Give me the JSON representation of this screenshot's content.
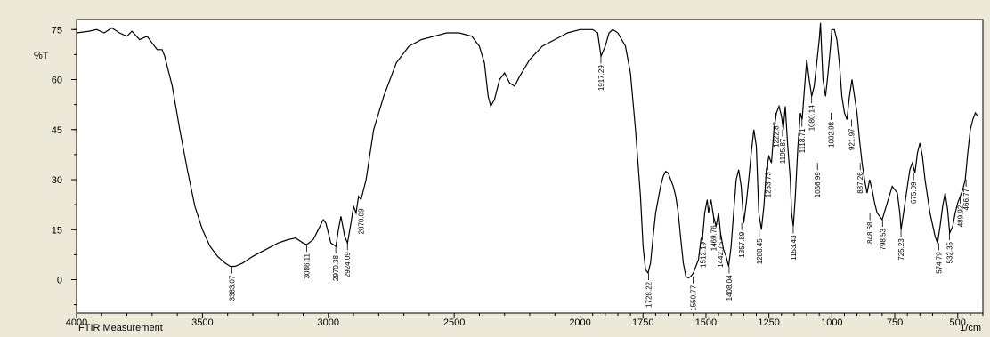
{
  "chart_data": {
    "type": "line",
    "title": "",
    "xlabel": "FTIR Measurement",
    "x_unit": "1/cm",
    "ylabel": "%T",
    "xlim": [
      4000,
      400
    ],
    "ylim": [
      -10,
      78
    ],
    "x_reversed": true,
    "grid": false,
    "x_ticks": [
      4000,
      3500,
      3000,
      2500,
      2000,
      1750,
      1500,
      1250,
      1000,
      750,
      500
    ],
    "x_tick_labels": [
      "4000",
      "3500",
      "3000",
      "2500",
      "2000",
      "1750",
      "1500",
      "1250",
      "1000",
      "750",
      "500"
    ],
    "y_ticks": [
      0,
      15,
      30,
      45,
      60,
      75
    ],
    "y_tick_labels": [
      "0",
      "15",
      "30",
      "45",
      "60",
      "75"
    ],
    "line_color": "#000000",
    "series": [
      {
        "name": "",
        "points": [
          [
            4000,
            74
          ],
          [
            3950,
            74.5
          ],
          [
            3920,
            75
          ],
          [
            3890,
            74
          ],
          [
            3860,
            75.5
          ],
          [
            3830,
            74
          ],
          [
            3800,
            73
          ],
          [
            3780,
            74.5
          ],
          [
            3750,
            72
          ],
          [
            3720,
            73
          ],
          [
            3700,
            71
          ],
          [
            3680,
            69
          ],
          [
            3660,
            69
          ],
          [
            3650,
            67
          ],
          [
            3620,
            58
          ],
          [
            3590,
            45
          ],
          [
            3560,
            33
          ],
          [
            3530,
            22
          ],
          [
            3500,
            15
          ],
          [
            3470,
            10
          ],
          [
            3440,
            7
          ],
          [
            3410,
            5
          ],
          [
            3390,
            4
          ],
          [
            3370,
            4
          ],
          [
            3340,
            5
          ],
          [
            3300,
            7
          ],
          [
            3250,
            9
          ],
          [
            3200,
            11
          ],
          [
            3160,
            12
          ],
          [
            3130,
            12.5
          ],
          [
            3100,
            11
          ],
          [
            3086,
            10.5
          ],
          [
            3060,
            12
          ],
          [
            3040,
            15
          ],
          [
            3020,
            18
          ],
          [
            3010,
            17
          ],
          [
            2990,
            11
          ],
          [
            2970,
            10
          ],
          [
            2960,
            15
          ],
          [
            2950,
            19
          ],
          [
            2935,
            13
          ],
          [
            2924,
            11
          ],
          [
            2910,
            17
          ],
          [
            2900,
            22
          ],
          [
            2890,
            20
          ],
          [
            2880,
            25
          ],
          [
            2870,
            24
          ],
          [
            2850,
            30
          ],
          [
            2820,
            45
          ],
          [
            2780,
            55
          ],
          [
            2730,
            65
          ],
          [
            2680,
            70
          ],
          [
            2630,
            72
          ],
          [
            2580,
            73
          ],
          [
            2530,
            74
          ],
          [
            2480,
            74
          ],
          [
            2430,
            73
          ],
          [
            2400,
            70
          ],
          [
            2380,
            65
          ],
          [
            2365,
            55
          ],
          [
            2355,
            52
          ],
          [
            2340,
            54
          ],
          [
            2320,
            60
          ],
          [
            2300,
            62
          ],
          [
            2280,
            59
          ],
          [
            2260,
            58
          ],
          [
            2240,
            61
          ],
          [
            2200,
            66
          ],
          [
            2150,
            70
          ],
          [
            2100,
            72
          ],
          [
            2050,
            74
          ],
          [
            2000,
            75
          ],
          [
            1950,
            75
          ],
          [
            1930,
            74
          ],
          [
            1917,
            67
          ],
          [
            1900,
            70
          ],
          [
            1885,
            74
          ],
          [
            1870,
            75
          ],
          [
            1850,
            74
          ],
          [
            1820,
            70
          ],
          [
            1800,
            62
          ],
          [
            1780,
            45
          ],
          [
            1760,
            25
          ],
          [
            1750,
            10
          ],
          [
            1740,
            3
          ],
          [
            1730,
            2
          ],
          [
            1720,
            5
          ],
          [
            1710,
            13
          ],
          [
            1700,
            20
          ],
          [
            1690,
            24
          ],
          [
            1680,
            28
          ],
          [
            1670,
            31
          ],
          [
            1660,
            32.5
          ],
          [
            1650,
            32
          ],
          [
            1640,
            30
          ],
          [
            1630,
            28
          ],
          [
            1620,
            25
          ],
          [
            1610,
            20
          ],
          [
            1600,
            12
          ],
          [
            1590,
            5
          ],
          [
            1580,
            1
          ],
          [
            1570,
            0.5
          ],
          [
            1560,
            1
          ],
          [
            1550,
            2
          ],
          [
            1540,
            4
          ],
          [
            1530,
            6
          ],
          [
            1520,
            12
          ],
          [
            1512,
            14
          ],
          [
            1505,
            20
          ],
          [
            1495,
            24
          ],
          [
            1490,
            20
          ],
          [
            1485,
            22
          ],
          [
            1480,
            24
          ],
          [
            1470,
            19
          ],
          [
            1460,
            16
          ],
          [
            1450,
            20
          ],
          [
            1442,
            14
          ],
          [
            1430,
            9
          ],
          [
            1420,
            7
          ],
          [
            1410,
            4
          ],
          [
            1400,
            10
          ],
          [
            1390,
            20
          ],
          [
            1380,
            30
          ],
          [
            1370,
            33
          ],
          [
            1360,
            28
          ],
          [
            1350,
            17
          ],
          [
            1340,
            23
          ],
          [
            1330,
            30
          ],
          [
            1320,
            38
          ],
          [
            1310,
            45
          ],
          [
            1300,
            40
          ],
          [
            1290,
            20
          ],
          [
            1280,
            15
          ],
          [
            1270,
            22
          ],
          [
            1260,
            33
          ],
          [
            1250,
            37
          ],
          [
            1240,
            35
          ],
          [
            1230,
            45
          ],
          [
            1220,
            50
          ],
          [
            1210,
            52
          ],
          [
            1200,
            49
          ],
          [
            1193,
            45
          ],
          [
            1185,
            52
          ],
          [
            1175,
            40
          ],
          [
            1165,
            30
          ],
          [
            1160,
            20
          ],
          [
            1153,
            16
          ],
          [
            1145,
            25
          ],
          [
            1135,
            40
          ],
          [
            1125,
            50
          ],
          [
            1118,
            48
          ],
          [
            1110,
            56
          ],
          [
            1100,
            66
          ],
          [
            1090,
            60
          ],
          [
            1080,
            55
          ],
          [
            1070,
            58
          ],
          [
            1060,
            65
          ],
          [
            1050,
            72
          ],
          [
            1045,
            77
          ],
          [
            1040,
            68
          ],
          [
            1035,
            60
          ],
          [
            1025,
            55
          ],
          [
            1015,
            62
          ],
          [
            1005,
            70
          ],
          [
            1000,
            75
          ],
          [
            990,
            75
          ],
          [
            980,
            72
          ],
          [
            970,
            65
          ],
          [
            960,
            55
          ],
          [
            950,
            50
          ],
          [
            940,
            48
          ],
          [
            930,
            55
          ],
          [
            920,
            60
          ],
          [
            910,
            55
          ],
          [
            900,
            50
          ],
          [
            890,
            42
          ],
          [
            880,
            35
          ],
          [
            870,
            30
          ],
          [
            860,
            26
          ],
          [
            850,
            30
          ],
          [
            840,
            27
          ],
          [
            830,
            23
          ],
          [
            820,
            20
          ],
          [
            800,
            18
          ],
          [
            780,
            23
          ],
          [
            760,
            28
          ],
          [
            740,
            26
          ],
          [
            730,
            20
          ],
          [
            725,
            15
          ],
          [
            715,
            20
          ],
          [
            700,
            28
          ],
          [
            690,
            33
          ],
          [
            680,
            35
          ],
          [
            670,
            32
          ],
          [
            660,
            38
          ],
          [
            650,
            41
          ],
          [
            640,
            37
          ],
          [
            630,
            30
          ],
          [
            610,
            20
          ],
          [
            590,
            13
          ],
          [
            580,
            11
          ],
          [
            570,
            16
          ],
          [
            560,
            22
          ],
          [
            550,
            26
          ],
          [
            540,
            21
          ],
          [
            532,
            14
          ],
          [
            520,
            16
          ],
          [
            510,
            20
          ],
          [
            500,
            23
          ],
          [
            490,
            25
          ],
          [
            480,
            27
          ],
          [
            470,
            30
          ],
          [
            460,
            38
          ],
          [
            450,
            45
          ],
          [
            440,
            48
          ],
          [
            430,
            50
          ],
          [
            420,
            49
          ]
        ]
      }
    ],
    "peak_labels": [
      {
        "x": 3383.07,
        "y": 4,
        "text": "3383.07"
      },
      {
        "x": 3086.11,
        "y": 10.5,
        "text": "3086.11"
      },
      {
        "x": 2970.38,
        "y": 10,
        "text": "2970.38"
      },
      {
        "x": 2924.09,
        "y": 11,
        "text": "2924.09"
      },
      {
        "x": 2870.09,
        "y": 24,
        "text": "2870.09"
      },
      {
        "x": 1917.29,
        "y": 67,
        "text": "1917.29"
      },
      {
        "x": 1728.22,
        "y": 2,
        "text": "1728.22"
      },
      {
        "x": 1550.77,
        "y": 1,
        "text": "1550.77"
      },
      {
        "x": 1512.19,
        "y": 14,
        "text": "1512.19"
      },
      {
        "x": 1469.76,
        "y": 19,
        "text": "1469.76"
      },
      {
        "x": 1442.75,
        "y": 14,
        "text": "1442.75"
      },
      {
        "x": 1408.04,
        "y": 4,
        "text": "1408.04"
      },
      {
        "x": 1357.89,
        "y": 17,
        "text": "1357.89"
      },
      {
        "x": 1288.45,
        "y": 15,
        "text": "1288.45"
      },
      {
        "x": 1253.73,
        "y": 35,
        "text": "1253.73"
      },
      {
        "x": 1222.87,
        "y": 50,
        "text": "1222.87"
      },
      {
        "x": 1195.87,
        "y": 45,
        "text": "1195.87"
      },
      {
        "x": 1153.43,
        "y": 16,
        "text": "1153.43"
      },
      {
        "x": 1118.71,
        "y": 48,
        "text": "1118.71"
      },
      {
        "x": 1080.14,
        "y": 55,
        "text": "1080.14"
      },
      {
        "x": 1056.99,
        "y": 35,
        "text": "1056.99"
      },
      {
        "x": 1002.98,
        "y": 50,
        "text": "1002.98"
      },
      {
        "x": 921.97,
        "y": 48,
        "text": "921.97"
      },
      {
        "x": 887.26,
        "y": 35,
        "text": "887.26"
      },
      {
        "x": 848.68,
        "y": 20,
        "text": "848.68"
      },
      {
        "x": 798.53,
        "y": 18,
        "text": "798.53"
      },
      {
        "x": 725.23,
        "y": 15,
        "text": "725.23"
      },
      {
        "x": 675.09,
        "y": 32,
        "text": "675.09"
      },
      {
        "x": 574.79,
        "y": 11,
        "text": "574.79"
      },
      {
        "x": 532.35,
        "y": 14,
        "text": "532.35"
      },
      {
        "x": 489.92,
        "y": 25,
        "text": "489.92"
      },
      {
        "x": 466.77,
        "y": 30,
        "text": "466.77"
      }
    ]
  }
}
